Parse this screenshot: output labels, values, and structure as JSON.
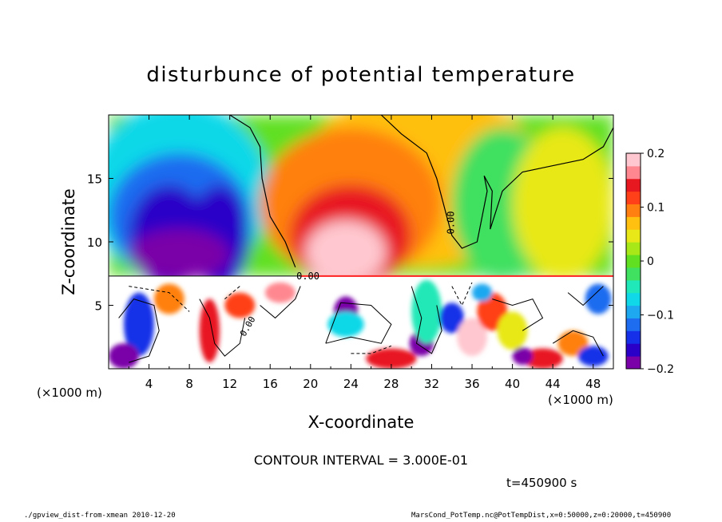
{
  "chart_data": {
    "type": "heatmap",
    "title": "disturbunce of potential temperature",
    "xlabel": "X-coordinate",
    "ylabel": "Z-coordinate",
    "x_unit_label": "(×1000 m)",
    "x_unit_label_right": "(×1000 m)",
    "xlim": [
      0,
      50
    ],
    "ylim": [
      0,
      20
    ],
    "xticks": [
      "4",
      "8",
      "12",
      "16",
      "20",
      "24",
      "28",
      "32",
      "36",
      "40",
      "44",
      "48"
    ],
    "yticks": [
      "5",
      "10",
      "15"
    ],
    "colorbar": {
      "range": [
        -0.2,
        0.2
      ],
      "tick_labels": [
        "0.2",
        "0.1",
        "0",
        "−0.1",
        "−0.2"
      ],
      "tick_values": [
        0.2,
        0.1,
        0,
        -0.1,
        -0.2
      ],
      "colors": [
        "#7a00a8",
        "#2a00c8",
        "#1530e8",
        "#1e6cf0",
        "#1ea8f0",
        "#10d8e8",
        "#20e8b8",
        "#40e060",
        "#60e020",
        "#a8e818",
        "#e8e818",
        "#ffc010",
        "#ff8010",
        "#ff4018",
        "#e81820",
        "#ff8890",
        "#ffc8d0"
      ]
    },
    "contour_labels": [
      "0.00",
      "0.00",
      "0.00"
    ],
    "contour_interval_text": "CONTOUR INTERVAL = 3.000E-01",
    "time_text": "t=450900 s",
    "field_description": "upper layer (z>7.3): negative anomalies (−0.2) near x 4–14, positive anomalies (+0.2) near x 19–28, near zero elsewhere; lower layer (z<7.3): turbulent small-scale structure"
  },
  "footer": {
    "left": "./gpview_dist-from-xmean  2010-12-20",
    "right": "MarsCond_PotTemp.nc@PotTempDist,x=0:50000,z=0:20000,t=450900"
  }
}
